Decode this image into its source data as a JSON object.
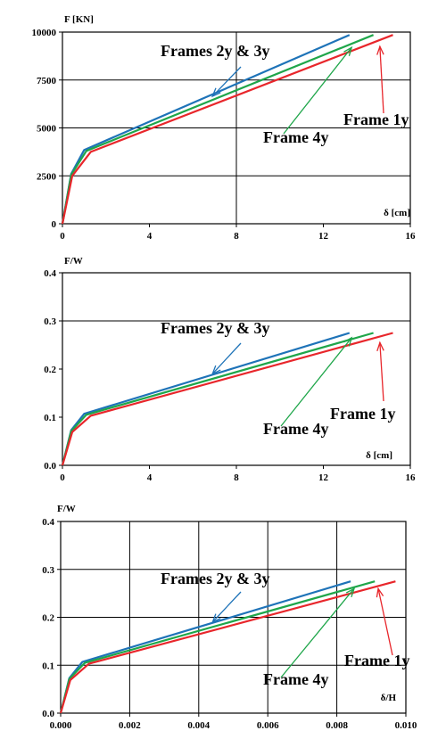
{
  "colors": {
    "frame_1y": "#e8262b",
    "frame_4y": "#1fa64a",
    "frames_2y_3y": "#1e73b8",
    "grid": "#000000"
  },
  "chart_data": [
    {
      "type": "line",
      "ylabel": "F [KN]",
      "xlabel": "δ [cm]",
      "xlim": [
        0,
        16
      ],
      "ylim": [
        0,
        10000
      ],
      "xticks": [
        0,
        4,
        8,
        12,
        16
      ],
      "xtick_labels": [
        "0",
        "4",
        "8",
        "12",
        "16"
      ],
      "yticks": [
        0,
        2500,
        5000,
        7500,
        10000
      ],
      "ytick_labels": [
        "0",
        "2500",
        "5000",
        "7500",
        "10000"
      ],
      "vertical_gridlines": [
        8
      ],
      "horizontal_gridlines": [
        2500,
        5000,
        7500
      ],
      "series": [
        {
          "name": "Frames 2y & 3y",
          "color": "#1e73b8",
          "x": [
            0,
            0.4,
            1.0,
            13.2
          ],
          "y": [
            0,
            2600,
            3850,
            9850
          ]
        },
        {
          "name": "Frame 4y",
          "color": "#1fa64a",
          "x": [
            0,
            0.4,
            1.1,
            14.3
          ],
          "y": [
            0,
            2550,
            3800,
            9850
          ]
        },
        {
          "name": "Frame 1y",
          "color": "#e8262b",
          "x": [
            0,
            0.45,
            1.3,
            15.2
          ],
          "y": [
            0,
            2500,
            3750,
            9850
          ]
        }
      ],
      "annotations": [
        {
          "text": "Frames 2y & 3y",
          "color": "#1e73b8",
          "arrow_to": [
            6.9,
            6650
          ]
        },
        {
          "text": "Frame 4y",
          "color": "#1fa64a",
          "arrow_to": [
            13.3,
            9200
          ]
        },
        {
          "text": "Frame 1y",
          "color": "#e8262b",
          "arrow_to": [
            14.6,
            9250
          ]
        }
      ]
    },
    {
      "type": "line",
      "ylabel": "F/W",
      "xlabel": "δ [cm]",
      "xlim": [
        0,
        16
      ],
      "ylim": [
        0,
        0.4
      ],
      "xticks": [
        0,
        4,
        8,
        12,
        16
      ],
      "xtick_labels": [
        "0",
        "4",
        "8",
        "12",
        "16"
      ],
      "yticks": [
        0,
        0.1,
        0.2,
        0.3,
        0.4
      ],
      "ytick_labels": [
        "0.0",
        "0.1",
        "0.2",
        "0.3",
        "0.4"
      ],
      "vertical_gridlines": [],
      "horizontal_gridlines": [
        0.3
      ],
      "series": [
        {
          "name": "Frames 2y & 3y",
          "color": "#1e73b8",
          "x": [
            0,
            0.4,
            1.0,
            13.2
          ],
          "y": [
            0,
            0.073,
            0.107,
            0.275
          ]
        },
        {
          "name": "Frame 4y",
          "color": "#1fa64a",
          "x": [
            0,
            0.4,
            1.1,
            14.3
          ],
          "y": [
            0,
            0.071,
            0.105,
            0.275
          ]
        },
        {
          "name": "Frame 1y",
          "color": "#e8262b",
          "x": [
            0,
            0.45,
            1.3,
            15.2
          ],
          "y": [
            0,
            0.069,
            0.103,
            0.275
          ]
        }
      ],
      "annotations": [
        {
          "text": "Frames 2y & 3y",
          "color": "#1e73b8",
          "arrow_to": [
            6.9,
            0.19
          ]
        },
        {
          "text": "Frame 4y",
          "color": "#1fa64a",
          "arrow_to": [
            13.3,
            0.265
          ]
        },
        {
          "text": "Frame 1y",
          "color": "#e8262b",
          "arrow_to": [
            14.6,
            0.255
          ]
        }
      ]
    },
    {
      "type": "line",
      "ylabel": "F/W",
      "xlabel": "δ/H",
      "xlim": [
        0,
        0.01
      ],
      "ylim": [
        0,
        0.4
      ],
      "xticks": [
        0,
        0.002,
        0.004,
        0.006,
        0.008,
        0.01
      ],
      "xtick_labels": [
        "0.000",
        "0.002",
        "0.004",
        "0.006",
        "0.008",
        "0.010"
      ],
      "yticks": [
        0,
        0.1,
        0.2,
        0.3,
        0.4
      ],
      "ytick_labels": [
        "0.0",
        "0.1",
        "0.2",
        "0.3",
        "0.4"
      ],
      "vertical_gridlines": [
        0.002,
        0.004,
        0.006,
        0.008
      ],
      "horizontal_gridlines": [
        0.1,
        0.2,
        0.3
      ],
      "series": [
        {
          "name": "Frames 2y & 3y",
          "color": "#1e73b8",
          "x": [
            0,
            0.00025,
            0.00063,
            0.0084
          ],
          "y": [
            0,
            0.073,
            0.107,
            0.275
          ]
        },
        {
          "name": "Frame 4y",
          "color": "#1fa64a",
          "x": [
            0,
            0.00025,
            0.0007,
            0.0091
          ],
          "y": [
            0,
            0.071,
            0.105,
            0.275
          ]
        },
        {
          "name": "Frame 1y",
          "color": "#e8262b",
          "x": [
            0,
            0.00028,
            0.00082,
            0.0097
          ],
          "y": [
            0,
            0.069,
            0.103,
            0.275
          ]
        }
      ],
      "annotations": [
        {
          "text": "Frames 2y & 3y",
          "color": "#1e73b8",
          "arrow_to": [
            0.0044,
            0.19
          ]
        },
        {
          "text": "Frame 4y",
          "color": "#1fa64a",
          "arrow_to": [
            0.0085,
            0.26
          ]
        },
        {
          "text": "Frame 1y",
          "color": "#e8262b",
          "arrow_to": [
            0.0092,
            0.26
          ]
        }
      ]
    }
  ]
}
